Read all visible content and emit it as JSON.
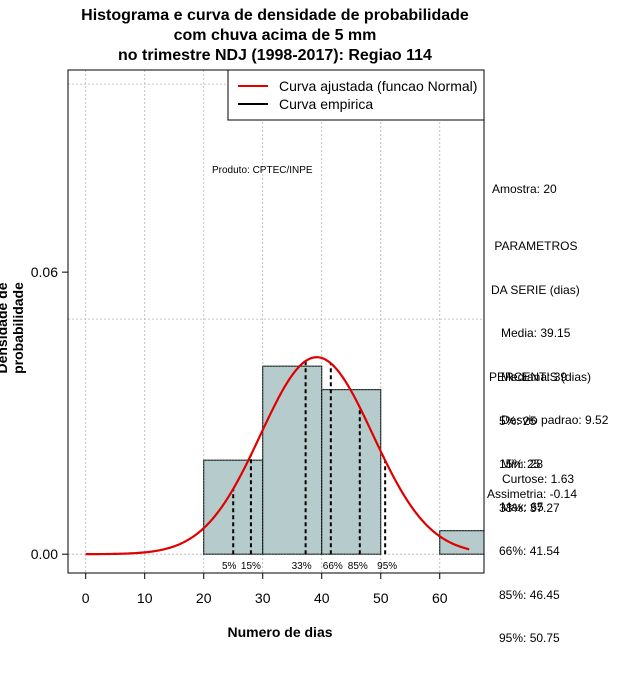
{
  "title_lines": [
    "Histograma e curva de densidade de probabilidade",
    "com chuva acima de 5 mm",
    "no trimestre NDJ (1998-2017): Regiao 114"
  ],
  "chart_data": {
    "type": "bar",
    "subtype": "histogram-with-density",
    "xlabel": "Numero de dias",
    "ylabel": "Densidade de probabilidade",
    "xlim": [
      -3,
      67.5
    ],
    "ylim": [
      -0.004,
      0.103
    ],
    "x_ticks": [
      0,
      10,
      20,
      30,
      40,
      50,
      60
    ],
    "y_ticks": [
      0.0,
      0.06
    ],
    "y_tick_labels": [
      "0.00",
      "0.06"
    ],
    "bins": [
      {
        "from": 20,
        "to": 30,
        "density": 0.02
      },
      {
        "from": 30,
        "to": 40,
        "density": 0.04
      },
      {
        "from": 40,
        "to": 50,
        "density": 0.035
      },
      {
        "from": 50,
        "to": 60,
        "density": 0.0
      },
      {
        "from": 60,
        "to": 67.5,
        "density": 0.005
      }
    ],
    "normal_fit": {
      "mean": 39.15,
      "sd": 9.52,
      "x_from": 0,
      "x_to": 65
    },
    "percentile_lines": [
      {
        "label": "5%",
        "x": 25
      },
      {
        "label": "15%",
        "x": 28
      },
      {
        "label": "33%",
        "x": 37.27
      },
      {
        "label": "66%",
        "x": 41.54
      },
      {
        "label": "85%",
        "x": 46.45
      },
      {
        "label": "95%",
        "x": 50.75
      }
    ],
    "legend": [
      {
        "label": "Curva ajustada (funcao Normal)",
        "color": "#e00000"
      },
      {
        "label": "Curva empirica",
        "color": "#000000"
      }
    ],
    "legend_position": "top-right",
    "annotation": "Produto: CPTEC/INPE",
    "grid": true,
    "colors": {
      "bar_fill": "#b6cccc",
      "fit_line": "#e00000",
      "empirical": "#000000",
      "grid": "#b4b4b4"
    }
  },
  "stats": {
    "amostra": "Amostra: 20",
    "param_lines": [
      " PARAMETROS",
      "DA SERIE (dias)",
      "   Media: 39.15",
      "   Mediana: 39",
      "   Desvio padrao: 9.52",
      "   Min: 25",
      "   Max: 65"
    ],
    "percentil_lines": [
      "PERCENTIS (dias)",
      "   5%: 25",
      "   15%: 28",
      "   33%: 37.27",
      "   66%: 41.54",
      "   85%: 46.45",
      "   95%: 50.75"
    ],
    "curtose": "Curtose: 1.63",
    "assimetria": "Assimetria: -0.14"
  }
}
